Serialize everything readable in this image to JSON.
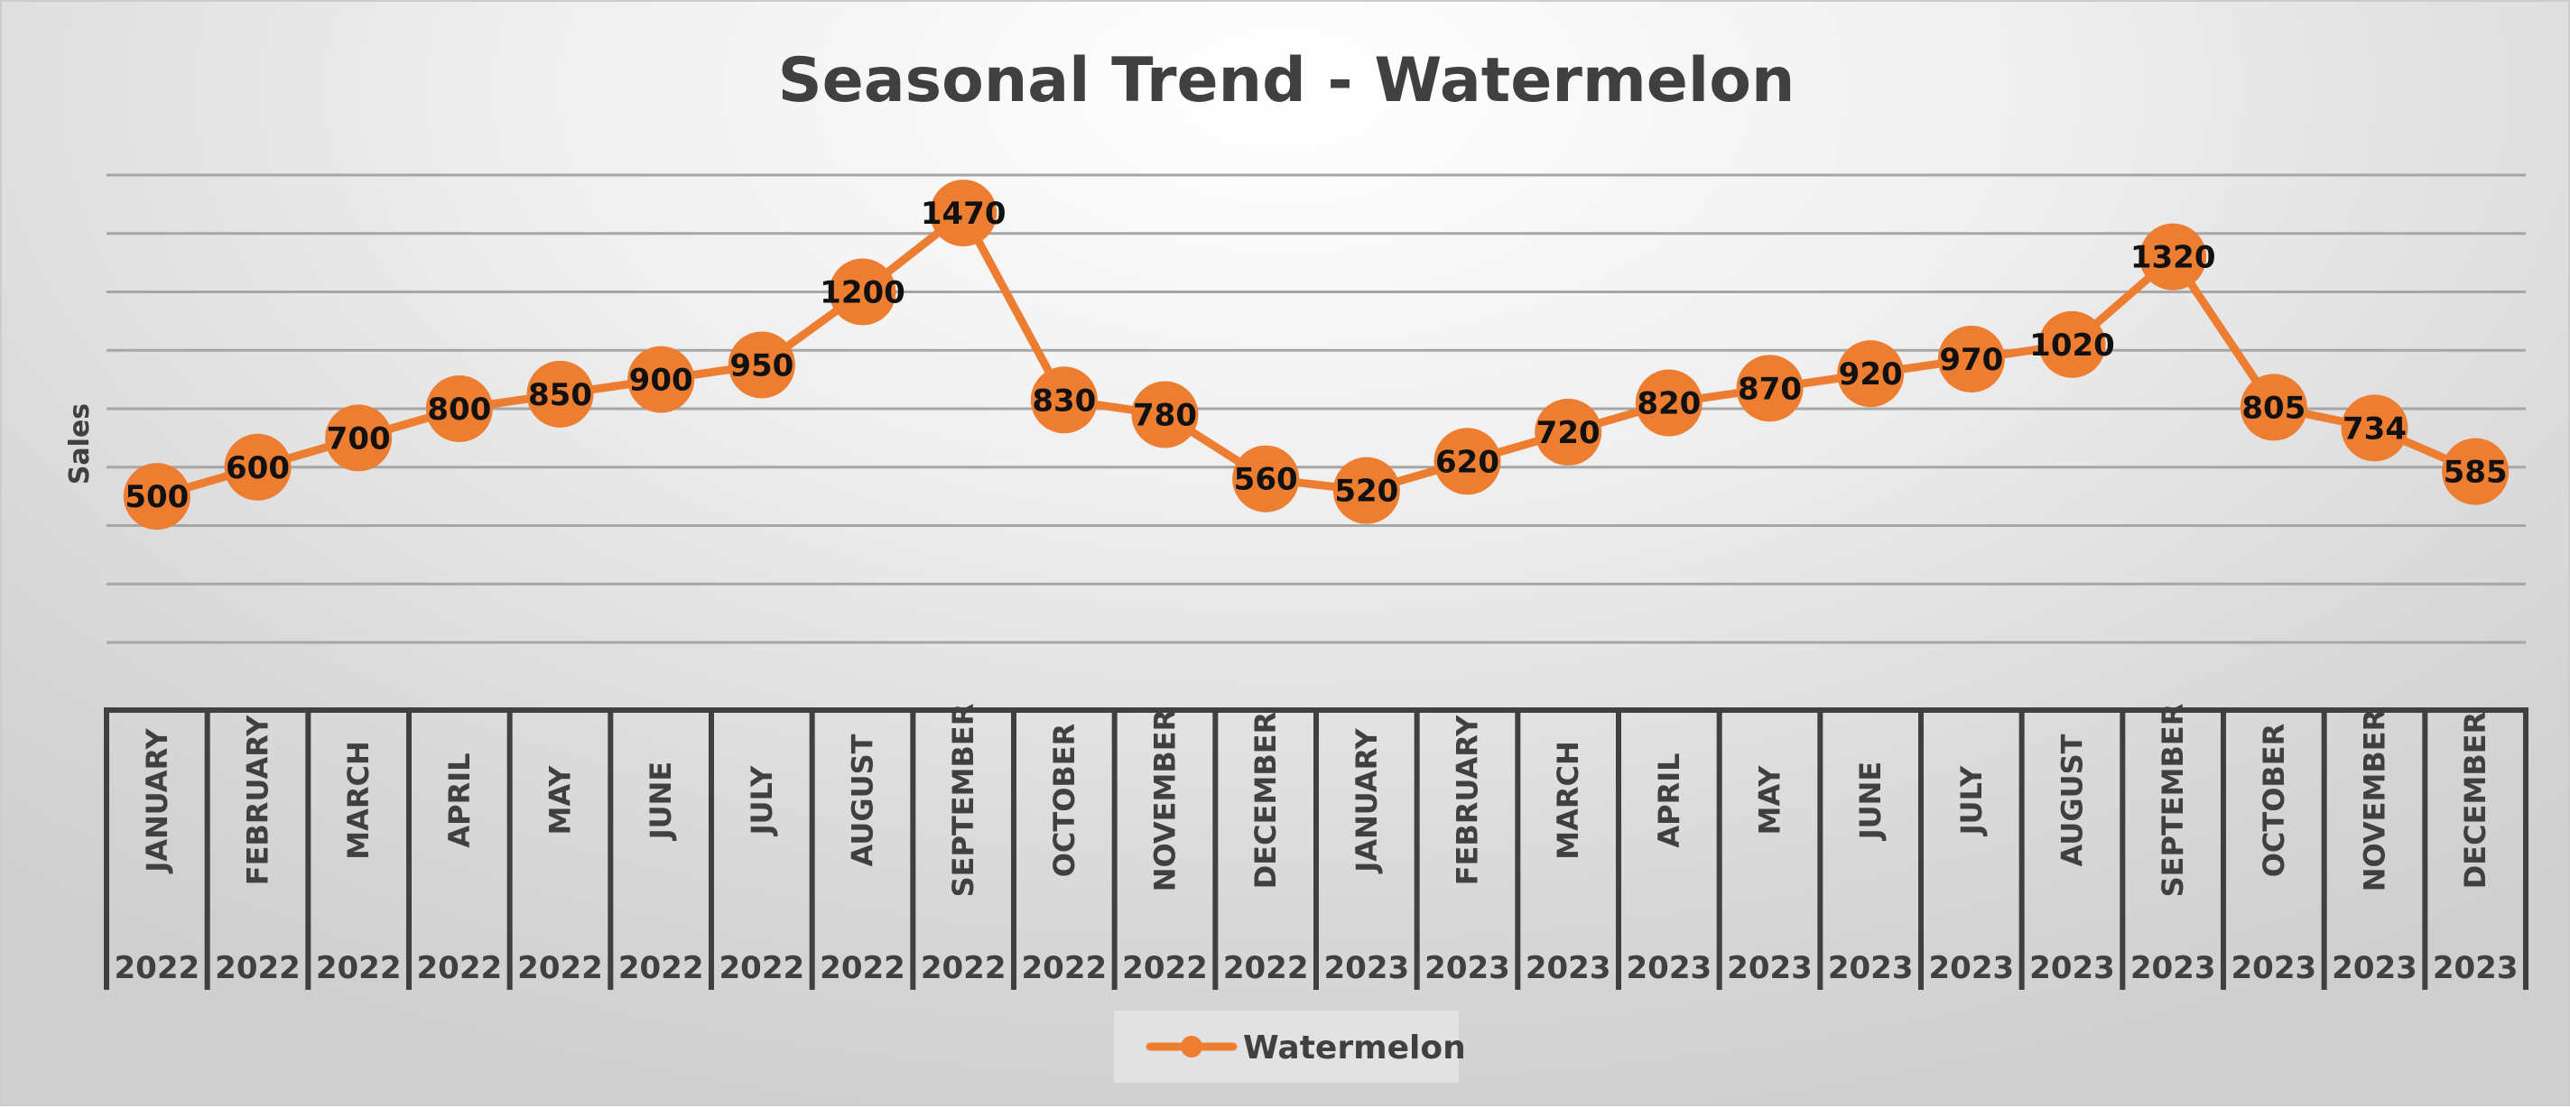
{
  "chart_data": {
    "type": "line",
    "title": "Seasonal Trend - Watermelon",
    "xlabel": "",
    "ylabel": "Sales",
    "ylim": [
      0,
      1600
    ],
    "grid": true,
    "legend": "bottom",
    "categories": [
      {
        "month": "JANUARY",
        "year": "2022"
      },
      {
        "month": "FEBRUARY",
        "year": "2022"
      },
      {
        "month": "MARCH",
        "year": "2022"
      },
      {
        "month": "APRIL",
        "year": "2022"
      },
      {
        "month": "MAY",
        "year": "2022"
      },
      {
        "month": "JUNE",
        "year": "2022"
      },
      {
        "month": "JULY",
        "year": "2022"
      },
      {
        "month": "AUGUST",
        "year": "2022"
      },
      {
        "month": "SEPTEMBER",
        "year": "2022"
      },
      {
        "month": "OCTOBER",
        "year": "2022"
      },
      {
        "month": "NOVEMBER",
        "year": "2022"
      },
      {
        "month": "DECEMBER",
        "year": "2022"
      },
      {
        "month": "JANUARY",
        "year": "2023"
      },
      {
        "month": "FEBRUARY",
        "year": "2023"
      },
      {
        "month": "MARCH",
        "year": "2023"
      },
      {
        "month": "APRIL",
        "year": "2023"
      },
      {
        "month": "MAY",
        "year": "2023"
      },
      {
        "month": "JUNE",
        "year": "2023"
      },
      {
        "month": "JULY",
        "year": "2023"
      },
      {
        "month": "AUGUST",
        "year": "2023"
      },
      {
        "month": "SEPTEMBER",
        "year": "2023"
      },
      {
        "month": "OCTOBER",
        "year": "2023"
      },
      {
        "month": "NOVEMBER",
        "year": "2023"
      },
      {
        "month": "DECEMBER",
        "year": "2023"
      }
    ],
    "series": [
      {
        "name": "Watermelon",
        "color": "#ED7D31",
        "values": [
          500,
          600,
          700,
          800,
          850,
          900,
          950,
          1200,
          1470,
          830,
          780,
          560,
          520,
          620,
          720,
          820,
          870,
          920,
          970,
          1020,
          1320,
          805,
          734,
          585
        ]
      }
    ]
  }
}
